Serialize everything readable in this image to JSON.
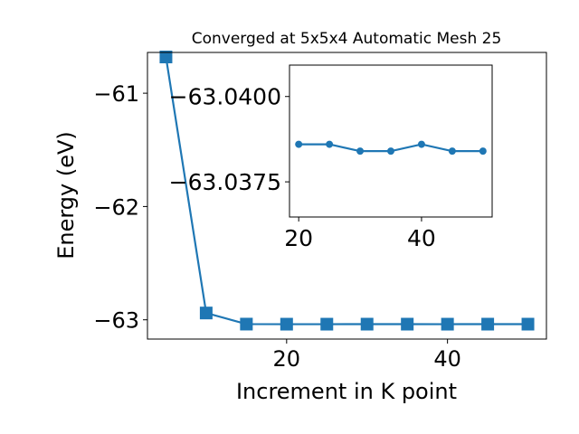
{
  "chart_data": [
    {
      "type": "line",
      "title": "Converged at 5x5x4 Automatic Mesh 25",
      "xlabel": "Increment in K point",
      "ylabel": "Energy (eV)",
      "marker": "square",
      "color": "#1f77b4",
      "xlim": [
        2.7,
        52.3
      ],
      "ylim": [
        -63.17,
        -60.64
      ],
      "xticks": [
        20,
        40
      ],
      "xtick_labels": [
        "20",
        "40"
      ],
      "yticks": [
        -63,
        -62,
        -61
      ],
      "ytick_labels": [
        "−63",
        "−62",
        "−61"
      ],
      "grid": false,
      "x": [
        5,
        10,
        15,
        20,
        25,
        30,
        35,
        40,
        45,
        50
      ],
      "values": [
        -60.68,
        -62.94,
        -63.038,
        -63.0386,
        -63.0386,
        -63.0384,
        -63.0384,
        -63.0386,
        -63.0384,
        -63.0384
      ]
    },
    {
      "type": "line",
      "role": "inset",
      "marker": "circle",
      "color": "#1f77b4",
      "xlim": [
        18.5,
        51.5
      ],
      "ylim": [
        -63.03647,
        -63.04092
      ],
      "xticks": [
        20,
        40
      ],
      "xtick_labels": [
        "20",
        "40"
      ],
      "yticks": [
        -63.0375,
        -63.04
      ],
      "ytick_labels": [
        "−63.0375",
        "−63.0400"
      ],
      "grid": false,
      "x": [
        20,
        25,
        30,
        35,
        40,
        45,
        50
      ],
      "values": [
        -63.0386,
        -63.0386,
        -63.0384,
        -63.0384,
        -63.0386,
        -63.0384,
        -63.0384
      ]
    }
  ]
}
